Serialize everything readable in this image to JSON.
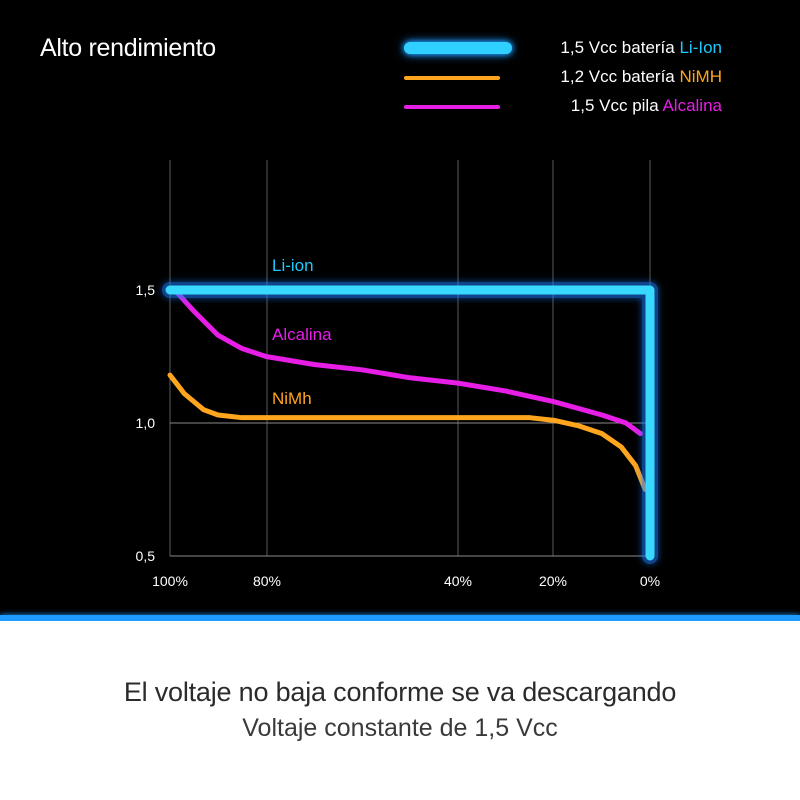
{
  "title": "Alto rendimiento",
  "legend": [
    {
      "prefix": "1,5 Vcc batería ",
      "highlight": "Li-Ion",
      "color": "#1ec8ff"
    },
    {
      "prefix": "1,2 Vcc batería ",
      "highlight": "NiMH",
      "color": "#ffa51e"
    },
    {
      "prefix": "1,5 Vcc pila ",
      "highlight": "Alcalina",
      "color": "#e61ee6"
    }
  ],
  "chart_data": {
    "type": "line",
    "title": "Alto rendimiento",
    "xlabel": "",
    "ylabel": "",
    "x_tick_labels": [
      "100%",
      "80%",
      "40%",
      "20%",
      "0%"
    ],
    "x_ticks": [
      100,
      80,
      40,
      20,
      0
    ],
    "y_tick_labels": [
      "1,5",
      "1,0",
      "0,5"
    ],
    "y_ticks": [
      1.5,
      1.0,
      0.5
    ],
    "xlim": [
      100,
      0
    ],
    "ylim": [
      0.5,
      1.5
    ],
    "grid": true,
    "legend_position": "top-right",
    "series": [
      {
        "name": "Li-ion",
        "color": "#1ec8ff",
        "x": [
          100,
          98,
          50,
          2,
          0,
          0
        ],
        "y": [
          1.5,
          1.5,
          1.5,
          1.5,
          1.5,
          0.5
        ]
      },
      {
        "name": "Alcalina",
        "color": "#e61ee6",
        "x": [
          99,
          95,
          90,
          85,
          80,
          70,
          60,
          50,
          40,
          30,
          20,
          10,
          5,
          2
        ],
        "y": [
          1.5,
          1.42,
          1.33,
          1.28,
          1.25,
          1.22,
          1.2,
          1.17,
          1.15,
          1.12,
          1.08,
          1.03,
          1.0,
          0.96
        ]
      },
      {
        "name": "NiMh",
        "color": "#ffa51e",
        "x": [
          100,
          97,
          93,
          90,
          85,
          80,
          70,
          60,
          50,
          40,
          30,
          25,
          20,
          15,
          10,
          6,
          3,
          1
        ],
        "y": [
          1.18,
          1.11,
          1.05,
          1.03,
          1.02,
          1.02,
          1.02,
          1.02,
          1.02,
          1.02,
          1.02,
          1.02,
          1.01,
          0.99,
          0.96,
          0.91,
          0.84,
          0.75
        ]
      }
    ]
  },
  "footer": {
    "headline": "El voltaje no baja conforme se va descargando",
    "subline": "Voltaje constante de 1,5 Vcc"
  }
}
